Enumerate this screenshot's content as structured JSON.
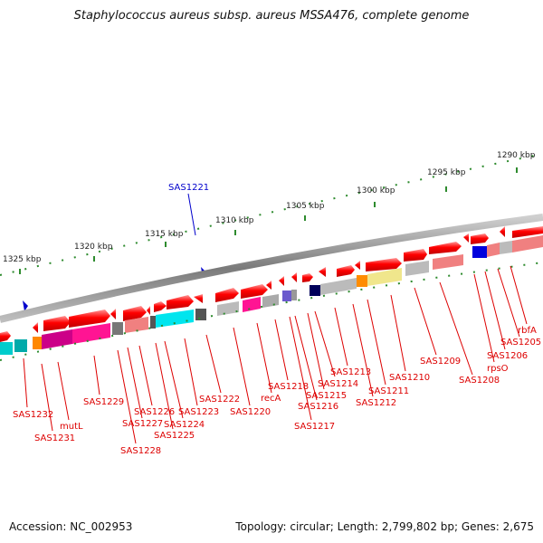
{
  "title": "Staphylococcus aureus subsp. aureus MSSA476, complete genome",
  "footer": {
    "accession": "Accession: NC_002953",
    "topology": "Topology: circular; Length: 2,799,802 bp; Genes: 2,675"
  },
  "scale_labels": [
    "1325 kbp",
    "1320 kbp",
    "1315 kbp",
    "1310 kbp",
    "1305 kbp",
    "1300 kbp",
    "1295 kbp",
    "1290 kbp"
  ],
  "selected_gene": "SAS1221",
  "gene_labels": [
    "SAS1232",
    "SAS1231",
    "mutL",
    "SAS1229",
    "SAS1228",
    "SAS1227",
    "SAS1226",
    "SAS1225",
    "SAS1224",
    "SAS1223",
    "SAS1222",
    "SAS1220",
    "recA",
    "SAS1218",
    "SAS1217",
    "SAS1216",
    "SAS1215",
    "SAS1214",
    "SAS1213",
    "SAS1212",
    "SAS1211",
    "SAS1210",
    "SAS1209",
    "SAS1208",
    "rpsO",
    "SAS1206",
    "SAS1205",
    "rbfA"
  ],
  "colors": {
    "forward": "#ff0000",
    "selected": "#0000cc",
    "backbone": "#888888",
    "scale": "#2e8b2e",
    "label": "#dd0000"
  }
}
